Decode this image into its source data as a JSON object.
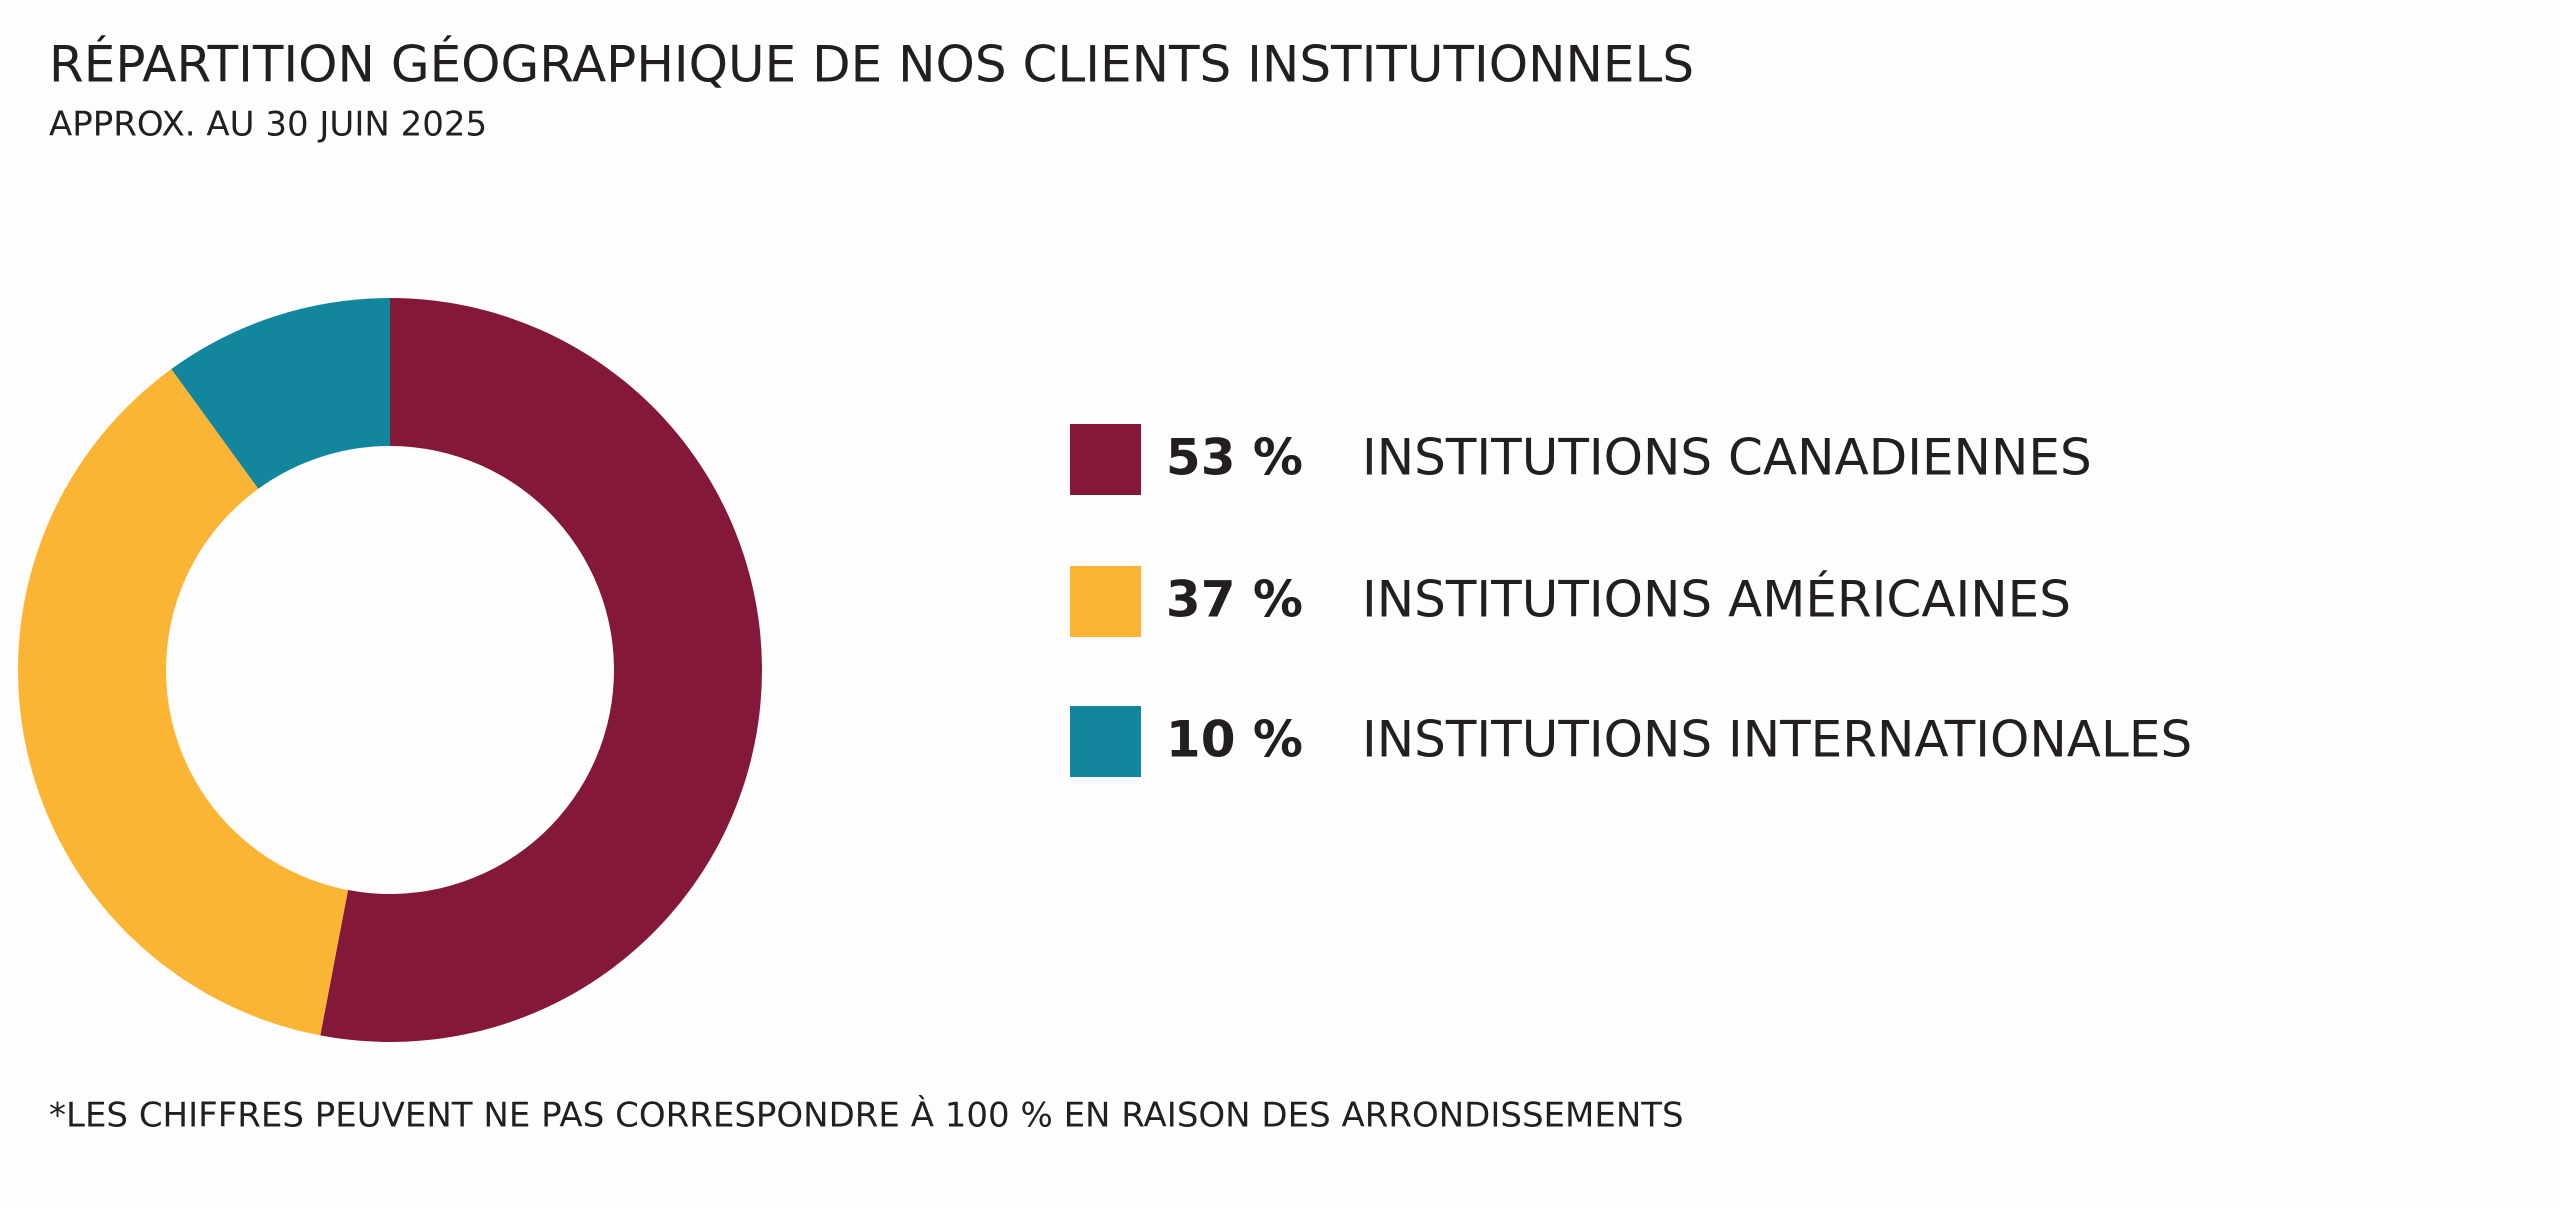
{
  "chart_data": {
    "type": "donut",
    "title": "RÉPARTITION GÉOGRAPHIQUE DE NOS CLIENTS INSTITUTIONNELS",
    "subtitle": "APPROX. AU 30 JUIN 2025",
    "categories": [
      "INSTITUTIONS CANADIENNES",
      "INSTITUTIONS AMÉRICAINES",
      "INSTITUTIONS INTERNATIONALES"
    ],
    "values": [
      53,
      37,
      10
    ],
    "value_labels": [
      "53 %",
      "37 %",
      "10 %"
    ],
    "colors": [
      "#841838",
      "#fbb535",
      "#12869c"
    ],
    "footnote": "*LES CHIFFRES PEUVENT NE PAS CORRESPONDRE À 100 % EN RAISON DES ARRONDISSEMENTS"
  }
}
